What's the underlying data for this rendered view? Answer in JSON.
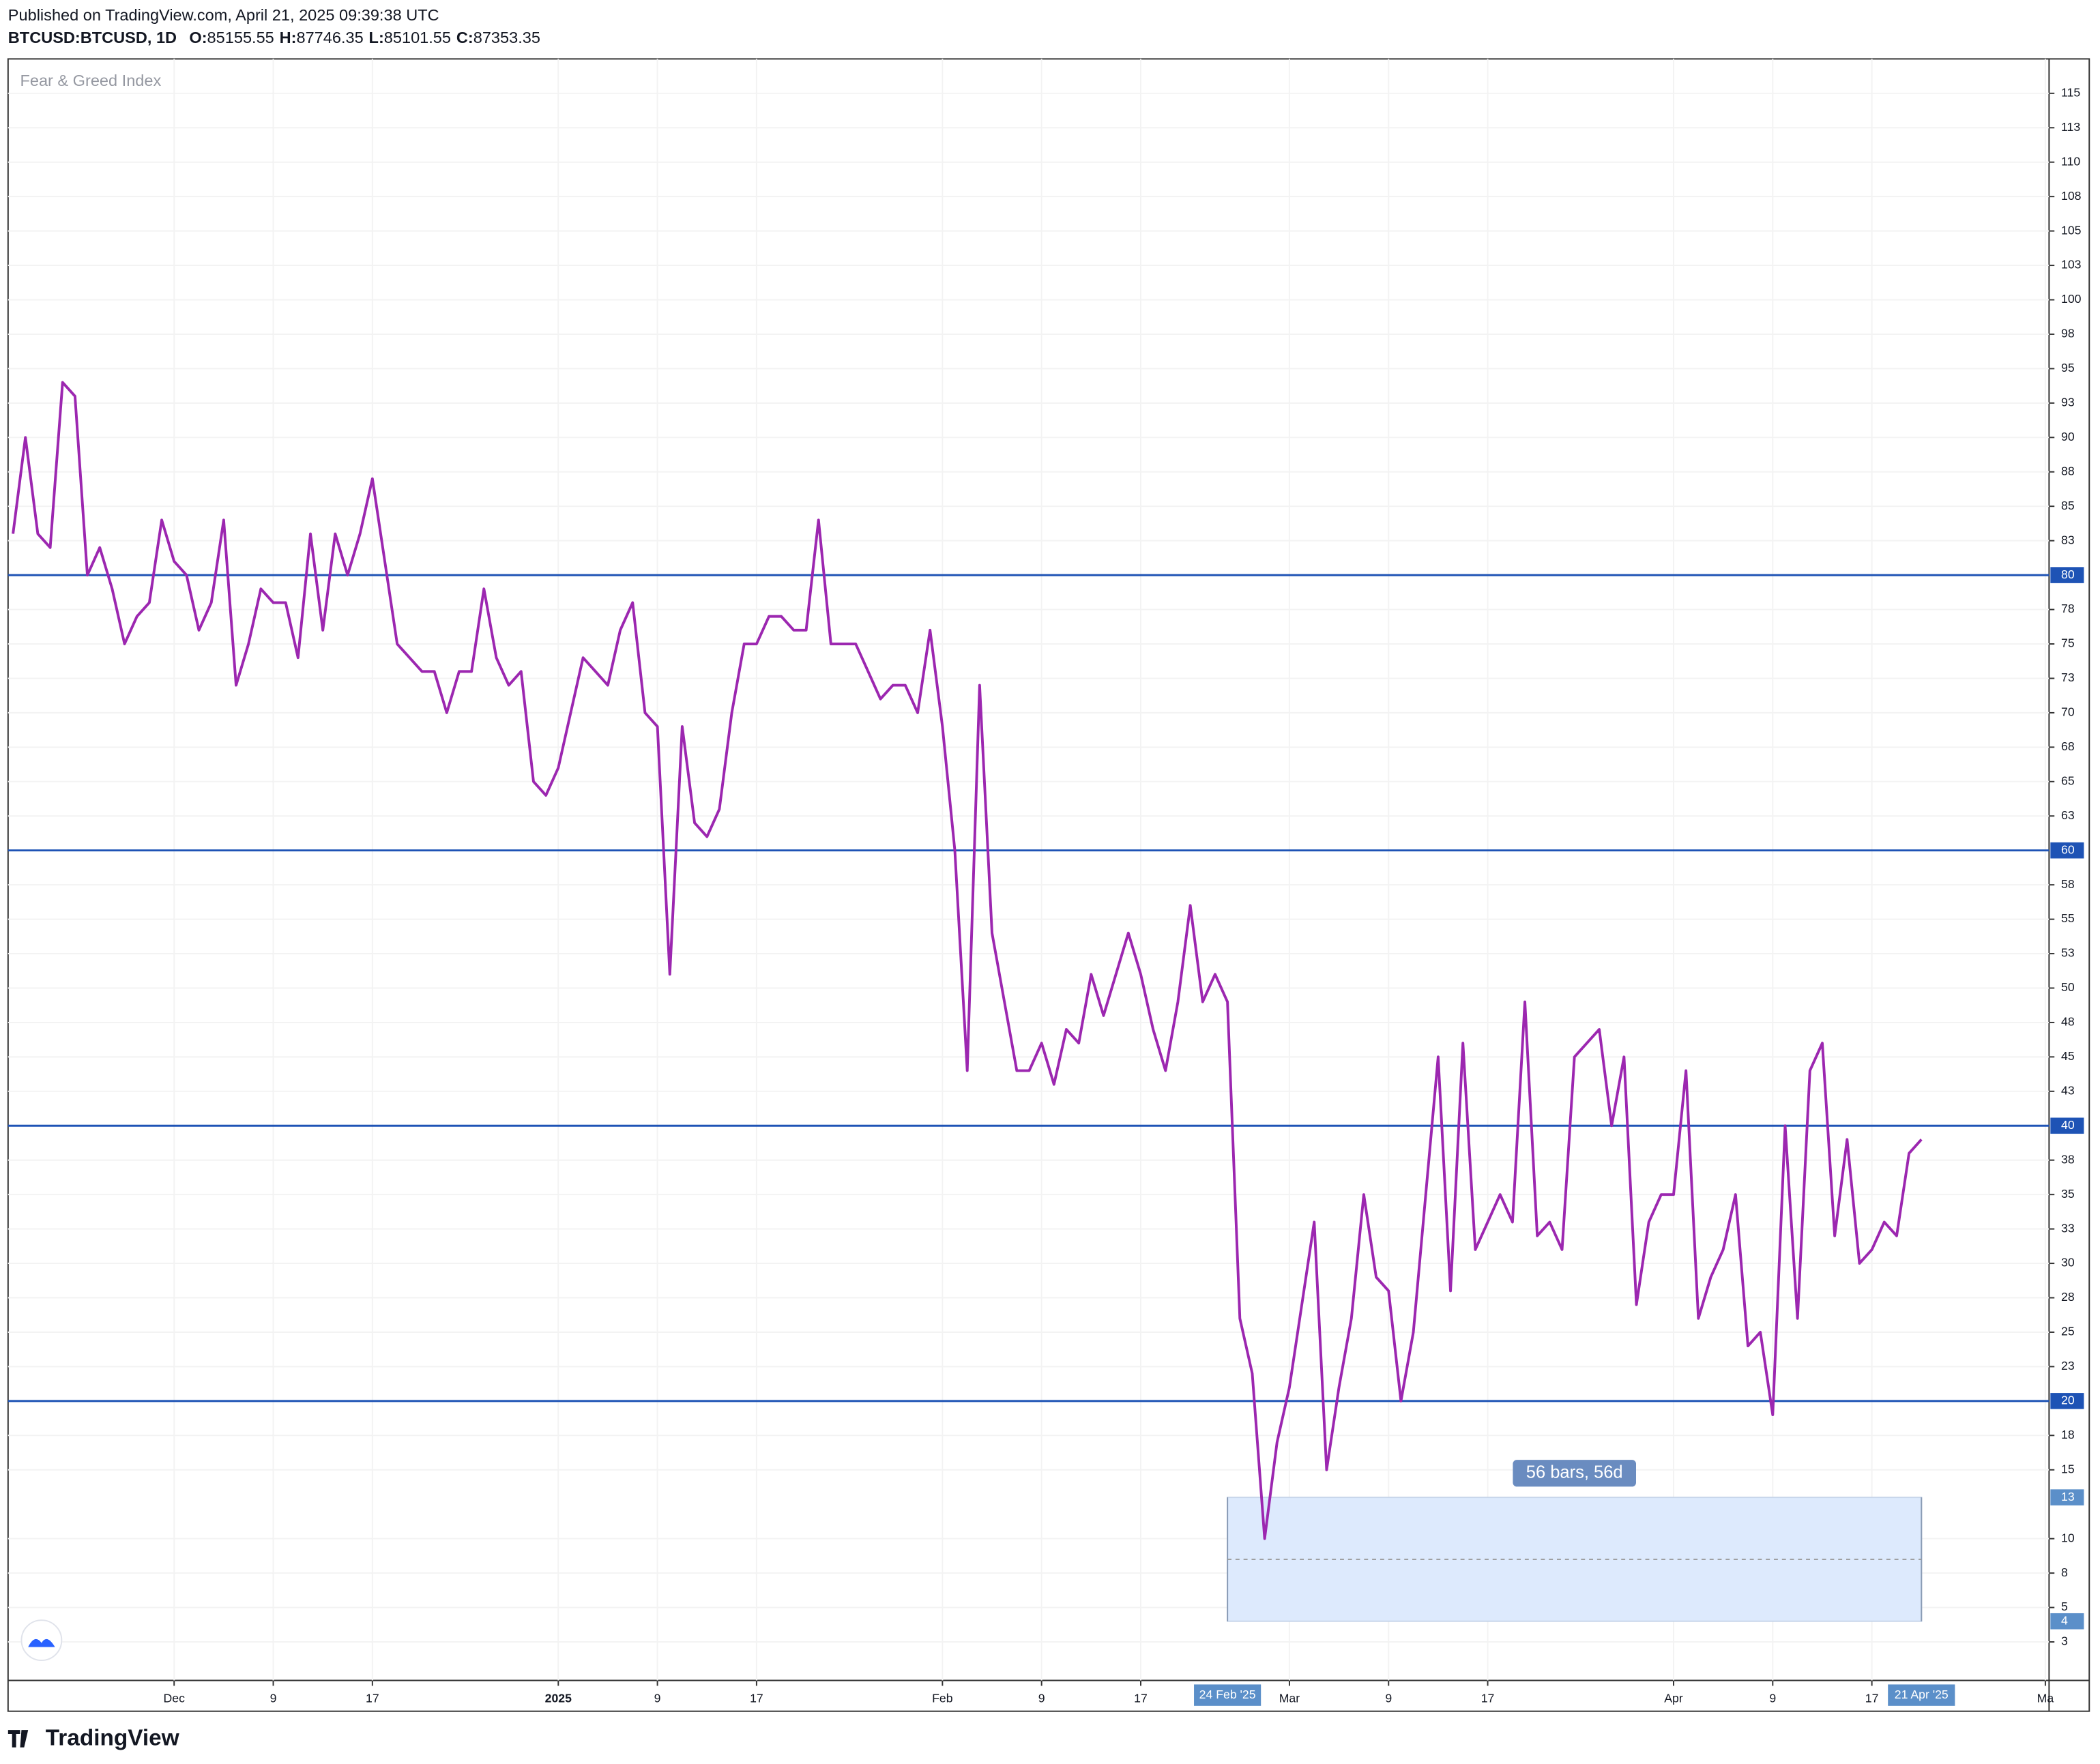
{
  "header": {
    "published": "Published on TradingView.com, April 21, 2025 09:39:38 UTC",
    "symbol": "BTCUSD:BTCUSD, 1D",
    "ohlc": [
      {
        "label": "O:",
        "value": 85155.55
      },
      {
        "label": "H:",
        "value": 87746.35
      },
      {
        "label": "L:",
        "value": 85101.55
      },
      {
        "label": "C:",
        "value": 87353.35
      }
    ]
  },
  "footer": {
    "brand": "TradingView"
  },
  "chart_data": {
    "type": "line",
    "title": "Fear & Greed Index",
    "series": [
      {
        "name": "Fear & Greed Index",
        "color": "#9c27b0",
        "values": [
          83,
          90,
          83,
          82,
          94,
          93,
          80,
          82,
          79,
          75,
          77,
          78,
          84,
          81,
          80,
          76,
          78,
          84,
          72,
          75,
          79,
          78,
          78,
          74,
          83,
          76,
          83,
          80,
          83,
          87,
          81,
          75,
          74,
          73,
          73,
          70,
          73,
          73,
          79,
          74,
          72,
          73,
          65,
          64,
          66,
          70,
          74,
          73,
          72,
          76,
          78,
          70,
          69,
          51,
          69,
          62,
          61,
          63,
          70,
          75,
          75,
          77,
          77,
          76,
          76,
          84,
          75,
          75,
          75,
          73,
          71,
          72,
          72,
          70,
          76,
          69,
          60,
          44,
          72,
          54,
          49,
          44,
          44,
          46,
          43,
          47,
          46,
          51,
          48,
          51,
          54,
          51,
          47,
          44,
          49,
          56,
          49,
          51,
          49,
          26,
          22,
          10,
          17,
          21,
          27,
          33,
          15,
          21,
          26,
          35,
          29,
          28,
          20,
          25,
          35,
          45,
          28,
          46,
          31,
          33,
          35,
          33,
          49,
          32,
          33,
          31,
          45,
          46,
          47,
          40,
          45,
          27,
          33,
          35,
          35,
          44,
          26,
          29,
          31,
          35,
          24,
          25,
          19,
          40,
          26,
          44,
          46,
          32,
          39,
          30,
          31,
          33,
          32,
          38,
          39
        ]
      }
    ],
    "xlim": [
      -0.4,
      164.3
    ],
    "xticks": [
      {
        "value": 13,
        "label": "Dec"
      },
      {
        "value": 21,
        "label": "9"
      },
      {
        "value": 29,
        "label": "17"
      },
      {
        "value": 44,
        "label": "2025"
      },
      {
        "value": 52,
        "label": "9"
      },
      {
        "value": 60,
        "label": "17"
      },
      {
        "value": 75,
        "label": "Feb"
      },
      {
        "value": 83,
        "label": "9"
      },
      {
        "value": 91,
        "label": "17"
      },
      {
        "value": 103,
        "label": "Mar"
      },
      {
        "value": 111,
        "label": "9"
      },
      {
        "value": 119,
        "label": "17"
      },
      {
        "value": 134,
        "label": "Apr"
      },
      {
        "value": 142,
        "label": "9"
      },
      {
        "value": 150,
        "label": "17"
      },
      {
        "value": 164,
        "label": "Ma"
      }
    ],
    "ylim": [
      -0.3,
      117.5
    ],
    "yticks": [
      115,
      {
        "value": 112.5,
        "label": "113"
      },
      110,
      {
        "value": 107.5,
        "label": "108"
      },
      105,
      {
        "value": 102.5,
        "label": "103"
      },
      100,
      {
        "value": 97.5,
        "label": "98"
      },
      95,
      {
        "value": 92.5,
        "label": "93"
      },
      90,
      {
        "value": 87.5,
        "label": "88"
      },
      85,
      {
        "value": 82.5,
        "label": "83"
      },
      {
        "value": 77.5,
        "label": "78"
      },
      75,
      {
        "value": 72.5,
        "label": "73"
      },
      70,
      {
        "value": 67.5,
        "label": "68"
      },
      65,
      {
        "value": 62.5,
        "label": "63"
      },
      {
        "value": 57.5,
        "label": "58"
      },
      55,
      {
        "value": 52.5,
        "label": "53"
      },
      50,
      {
        "value": 47.5,
        "label": "48"
      },
      45,
      {
        "value": 42.5,
        "label": "43"
      },
      {
        "value": 37.5,
        "label": "38"
      },
      35,
      {
        "value": 32.5,
        "label": "33"
      },
      30,
      {
        "value": 27.5,
        "label": "28"
      },
      25,
      {
        "value": 22.5,
        "label": "23"
      },
      {
        "value": 17.5,
        "label": "18"
      },
      15,
      10,
      {
        "value": 7.5,
        "label": "8"
      },
      5,
      {
        "value": 2.5,
        "label": "3"
      }
    ],
    "hlines": {
      "color": "#1e53b5",
      "values": [
        80,
        60,
        40,
        20
      ]
    },
    "grid": true,
    "range_box": {
      "label": "56 bars, 56d",
      "x": [
        98,
        154
      ],
      "y": [
        4,
        13
      ],
      "x_labels": [
        "24 Feb '25",
        "21 Apr '25"
      ]
    }
  }
}
